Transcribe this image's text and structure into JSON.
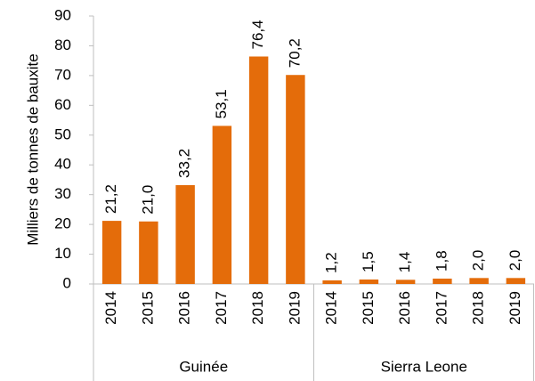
{
  "chart_data": {
    "type": "bar",
    "y_axis_label": "Milliers de tonnes de bauxite",
    "color": "#e46c0a",
    "ylim": [
      0,
      90
    ],
    "yticks": [
      0,
      10,
      20,
      30,
      40,
      50,
      60,
      70,
      80,
      90
    ],
    "grid": false,
    "groups": [
      {
        "name": "Guinée",
        "categories": [
          "2014",
          "2015",
          "2016",
          "2017",
          "2018",
          "2019"
        ],
        "values": [
          21.2,
          21.0,
          33.2,
          53.1,
          76.4,
          70.2
        ],
        "value_labels": [
          "21,2",
          "21,0",
          "33,2",
          "53,1",
          "76,4",
          "70,2"
        ]
      },
      {
        "name": "Sierra Leone",
        "categories": [
          "2014",
          "2015",
          "2016",
          "2017",
          "2018",
          "2019"
        ],
        "values": [
          1.2,
          1.5,
          1.4,
          1.8,
          2.0,
          2.0
        ],
        "value_labels": [
          "1,2",
          "1,5",
          "1,4",
          "1,8",
          "2,0",
          "2,0"
        ]
      }
    ]
  }
}
